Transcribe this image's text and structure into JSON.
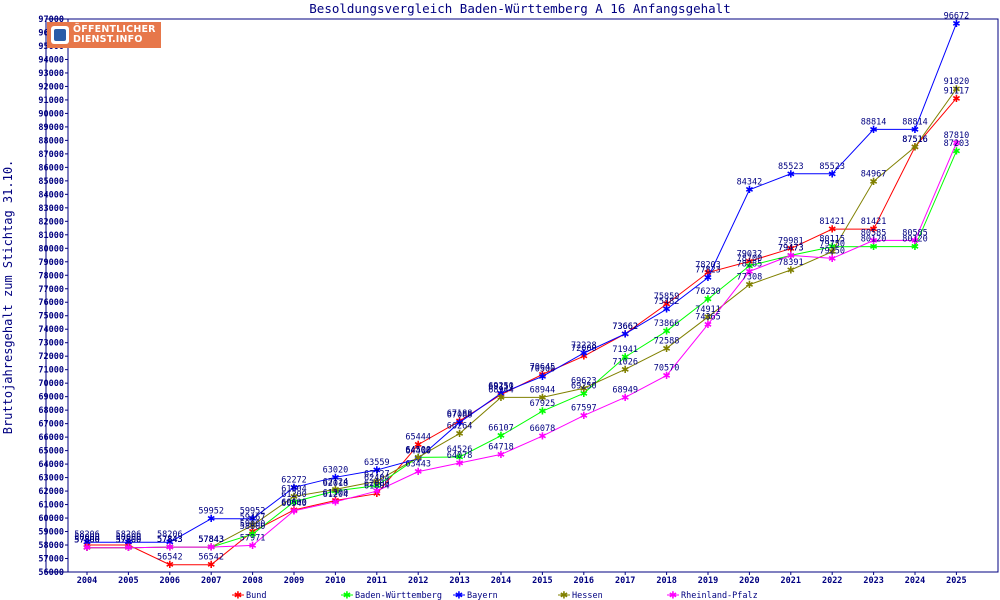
{
  "logo": {
    "line1": "ÖFFENTLICHER",
    "line2": "DIENST.INFO"
  },
  "chart_data": {
    "type": "line",
    "title": "Besoldungsvergleich Baden-Württemberg A 16 Anfangsgehalt",
    "ylabel": "Bruttojahresgehalt zum Stichtag 31.10.",
    "xlabel": "",
    "ylim": [
      56000,
      97000
    ],
    "ytick_step": 1000,
    "grid": false,
    "legend_position": "bottom",
    "categories": [
      "2004",
      "2005",
      "2006",
      "2007",
      "2008",
      "2009",
      "2010",
      "2011",
      "2012",
      "2013",
      "2014",
      "2015",
      "2016",
      "2017",
      "2018",
      "2019",
      "2020",
      "2021",
      "2022",
      "2023",
      "2024",
      "2025"
    ],
    "series": [
      {
        "name": "Bund",
        "color": "#ff0000",
        "values": [
          58000,
          58000,
          56542,
          56542,
          59000,
          60600,
          61300,
          61804,
          65444,
          67188,
          69151,
          70645,
          72000,
          73662,
          75859,
          78203,
          79032,
          79981,
          81421,
          81421,
          87516,
          91117
        ]
      },
      {
        "name": "Baden-Württemberg",
        "color": "#00ff00",
        "values": [
          57800,
          57800,
          57843,
          57843,
          58800,
          61200,
          62018,
          62404,
          64500,
          64526,
          66107,
          67925,
          69250,
          71941,
          73866,
          76230,
          78700,
          79473,
          80115,
          80120,
          80120,
          87203
        ]
      },
      {
        "name": "Bayern",
        "color": "#0000ff",
        "values": [
          58206,
          58206,
          58206,
          59952,
          59952,
          62272,
          63020,
          63559,
          64400,
          67088,
          69250,
          70500,
          72228,
          73662,
          75482,
          77823,
          84342,
          85523,
          85523,
          88814,
          88814,
          96672
        ]
      },
      {
        "name": "Hessen",
        "color": "#808000",
        "values": [
          57800,
          57800,
          57843,
          57843,
          59467,
          61604,
          62124,
          62727,
          64500,
          66264,
          68944,
          68944,
          69623,
          71026,
          72588,
          74911,
          77308,
          78391,
          79750,
          84967,
          87516,
          91820
        ]
      },
      {
        "name": "Rheinland-Pfalz",
        "color": "#ff00ff",
        "values": [
          57800,
          57800,
          57843,
          57843,
          57971,
          60540,
          61204,
          62000,
          63443,
          64078,
          64718,
          66078,
          67597,
          68949,
          70570,
          74365,
          78285,
          79473,
          79250,
          80585,
          80585,
          87810
        ]
      }
    ]
  }
}
